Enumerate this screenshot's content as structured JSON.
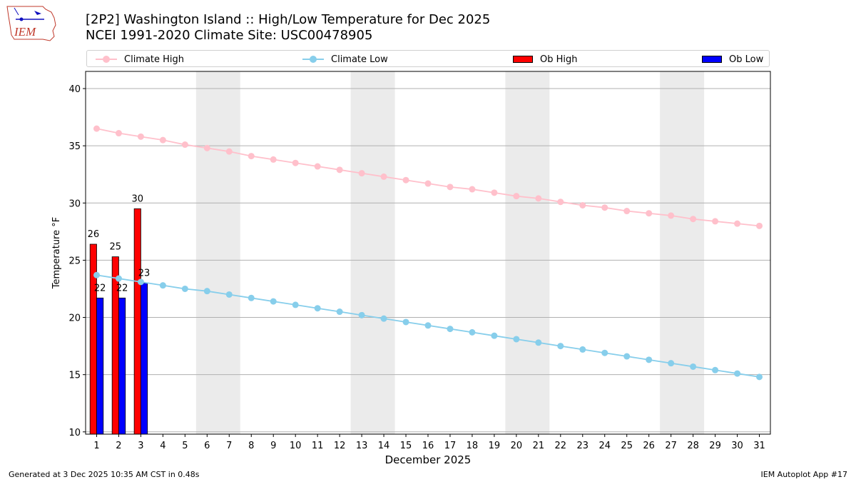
{
  "logo": {
    "text": "IEM"
  },
  "title": {
    "line1": "[2P2] Washington Island :: High/Low Temperature for Dec 2025",
    "line2": "NCEI 1991-2020 Climate Site: USC00478905"
  },
  "legend": [
    {
      "label": "Climate High",
      "kind": "line",
      "color": "#ffc0cb"
    },
    {
      "label": "Climate Low",
      "kind": "line",
      "color": "#87ceeb"
    },
    {
      "label": "Ob High",
      "kind": "bar",
      "color": "#ff0000"
    },
    {
      "label": "Ob Low",
      "kind": "bar",
      "color": "#0000ff"
    }
  ],
  "footer": {
    "left": "Generated at 3 Dec 2025 10:35 AM CST in 0.48s",
    "right": "IEM Autoplot App #17"
  },
  "chart_data": {
    "type": "bar",
    "xlabel": "December 2025",
    "ylabel": "Temperature °F",
    "ylim": [
      9.8,
      41.5
    ],
    "xlim": [
      0.5,
      31.5
    ],
    "yticks": [
      10,
      15,
      20,
      25,
      30,
      35,
      40
    ],
    "x": [
      1,
      2,
      3,
      4,
      5,
      6,
      7,
      8,
      9,
      10,
      11,
      12,
      13,
      14,
      15,
      16,
      17,
      18,
      19,
      20,
      21,
      22,
      23,
      24,
      25,
      26,
      27,
      28,
      29,
      30,
      31
    ],
    "grid": "horizontal",
    "weekend_shading": [
      [
        6,
        7
      ],
      [
        13,
        14
      ],
      [
        20,
        21
      ],
      [
        27,
        28
      ]
    ],
    "weekend_color": "#ebebeb",
    "series": [
      {
        "name": "Climate High",
        "type": "line",
        "color": "#ffc0cb",
        "values": [
          36.5,
          36.1,
          35.8,
          35.5,
          35.1,
          34.8,
          34.5,
          34.1,
          33.8,
          33.5,
          33.2,
          32.9,
          32.6,
          32.3,
          32.0,
          31.7,
          31.4,
          31.2,
          30.9,
          30.6,
          30.4,
          30.1,
          29.8,
          29.6,
          29.3,
          29.1,
          28.9,
          28.6,
          28.4,
          28.2,
          28.0
        ]
      },
      {
        "name": "Climate Low",
        "type": "line",
        "color": "#87ceeb",
        "values": [
          23.7,
          23.4,
          23.1,
          22.8,
          22.5,
          22.3,
          22.0,
          21.7,
          21.4,
          21.1,
          20.8,
          20.5,
          20.2,
          19.9,
          19.6,
          19.3,
          19.0,
          18.7,
          18.4,
          18.1,
          17.8,
          17.5,
          17.2,
          16.9,
          16.6,
          16.3,
          16.0,
          15.7,
          15.4,
          15.1,
          14.8
        ]
      },
      {
        "name": "Ob High",
        "type": "bar",
        "color": "#ff0000",
        "x": [
          1,
          2,
          3
        ],
        "values": [
          26.4,
          25.3,
          29.5
        ],
        "labels": [
          "26",
          "25",
          "30"
        ]
      },
      {
        "name": "Ob Low",
        "type": "bar",
        "color": "#0000ff",
        "x": [
          1,
          2,
          3
        ],
        "values": [
          21.7,
          21.7,
          23.0
        ],
        "labels": [
          "22",
          "22",
          "23"
        ]
      }
    ]
  }
}
